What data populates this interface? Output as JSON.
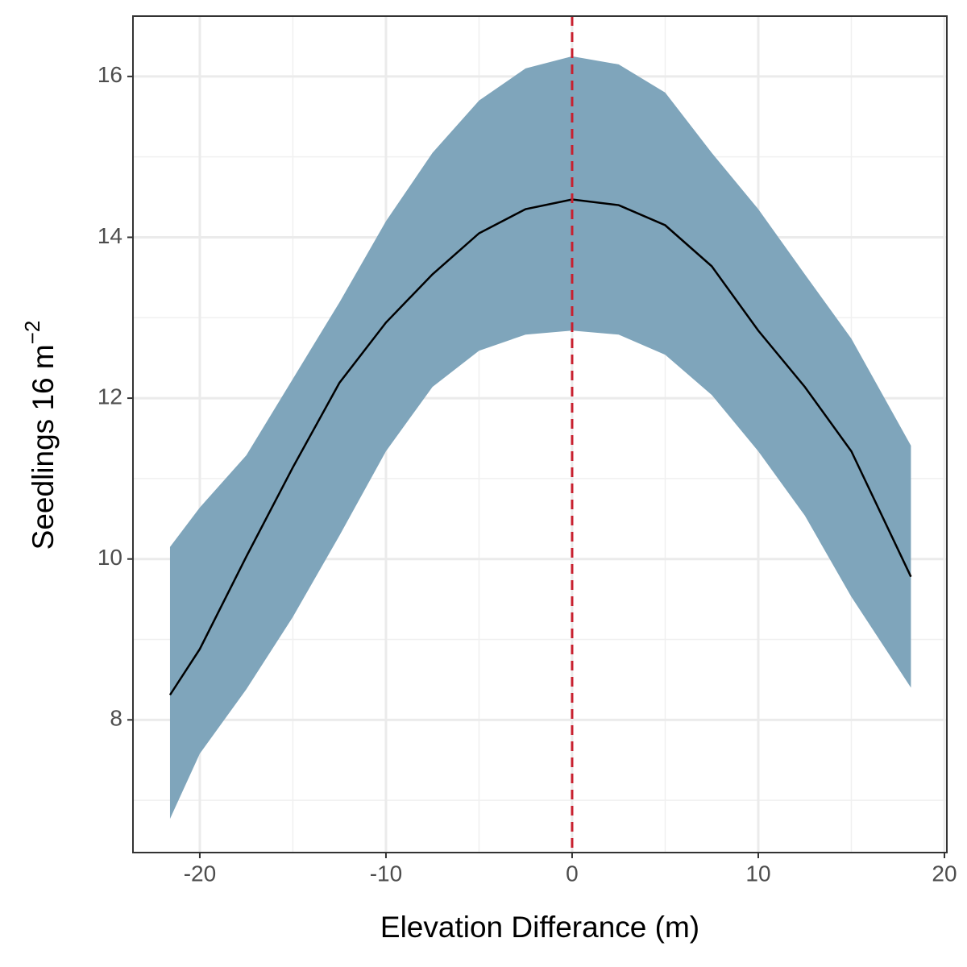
{
  "chart_data": {
    "type": "ribbon-line",
    "x": [
      -21.6,
      -20,
      -17.5,
      -15,
      -12.5,
      -10,
      -7.5,
      -5,
      -2.5,
      0,
      2.5,
      5,
      7.5,
      10,
      12.5,
      15,
      18.2
    ],
    "line": {
      "color": "#000000",
      "values": [
        8.31,
        8.88,
        10.03,
        11.14,
        12.19,
        12.94,
        13.54,
        14.05,
        14.35,
        14.47,
        14.4,
        14.15,
        13.64,
        12.84,
        12.14,
        11.34,
        9.78
      ]
    },
    "band": {
      "color": "#7fa5bb",
      "upper": [
        10.15,
        10.64,
        11.29,
        12.24,
        13.19,
        14.2,
        15.05,
        15.7,
        16.1,
        16.25,
        16.15,
        15.8,
        15.05,
        14.35,
        13.54,
        12.74,
        11.41
      ],
      "lower": [
        6.77,
        7.58,
        8.38,
        9.28,
        10.29,
        11.34,
        12.14,
        12.59,
        12.79,
        12.84,
        12.79,
        12.54,
        12.04,
        11.34,
        10.54,
        9.53,
        8.4
      ]
    },
    "vline": {
      "x": 0,
      "color": "#c8202f"
    },
    "xlabel": "Elevation Differance (m)",
    "ylabel": "Seedlings 16 m",
    "ylabel_superscript": "−2",
    "xlim": [
      -23.59,
      20.13
    ],
    "ylim": [
      6.35,
      16.75
    ],
    "xticks": [
      -20,
      -10,
      0,
      10,
      20
    ],
    "yticks": [
      8,
      10,
      12,
      14,
      16
    ],
    "xminor": [
      -15,
      -5,
      5,
      15
    ],
    "yminor": [
      7,
      9,
      11,
      13,
      15
    ],
    "grid": true
  }
}
